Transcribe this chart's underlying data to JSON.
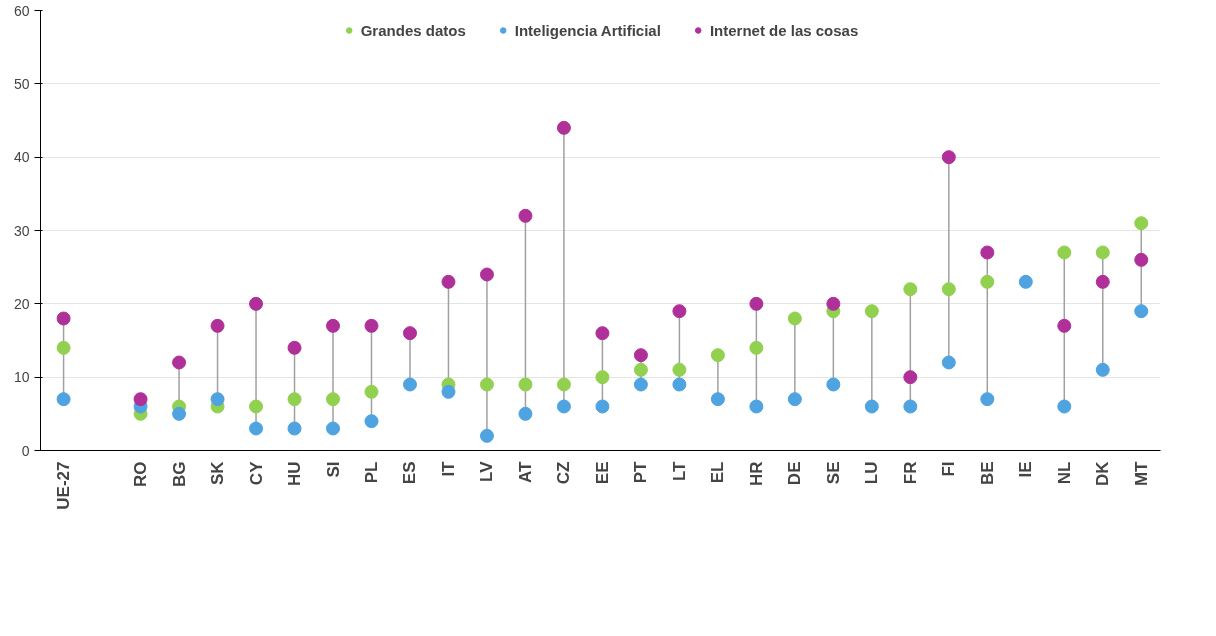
{
  "chart_data": {
    "type": "scatter",
    "categories": [
      "UE-27",
      null,
      "RO",
      "BG",
      "SK",
      "CY",
      "HU",
      "SI",
      "PL",
      "ES",
      "IT",
      "LV",
      "AT",
      "CZ",
      "EE",
      "PT",
      "LT",
      "EL",
      "HR",
      "DE",
      "SE",
      "LU",
      "FR",
      "FI",
      "BE",
      "IE",
      "NL",
      "DK",
      "MT"
    ],
    "series": [
      {
        "name": "Grandes datos",
        "color": "#92d050",
        "values": [
          14,
          null,
          5,
          6,
          6,
          6,
          7,
          7,
          8,
          null,
          9,
          9,
          9,
          9,
          10,
          11,
          11,
          13,
          14,
          18,
          19,
          19,
          22,
          22,
          23,
          null,
          27,
          27,
          31
        ]
      },
      {
        "name": "Inteligencia Artificial",
        "color": "#4ea3e0",
        "values": [
          7,
          null,
          6,
          5,
          7,
          3,
          3,
          3,
          4,
          9,
          8,
          2,
          5,
          6,
          6,
          9,
          9,
          7,
          6,
          7,
          9,
          6,
          6,
          12,
          7,
          23,
          6,
          11,
          19
        ]
      },
      {
        "name": "Internet de las cosas",
        "color": "#b0309a",
        "values": [
          18,
          null,
          7,
          12,
          17,
          20,
          14,
          17,
          17,
          16,
          23,
          24,
          32,
          44,
          16,
          13,
          19,
          null,
          20,
          null,
          20,
          null,
          10,
          40,
          27,
          null,
          17,
          23,
          26
        ]
      }
    ],
    "ylim": [
      0,
      60
    ],
    "yticks": [
      0,
      10,
      20,
      30,
      40,
      50,
      60
    ],
    "grid": "y",
    "legend": "top",
    "marker": "circle"
  }
}
